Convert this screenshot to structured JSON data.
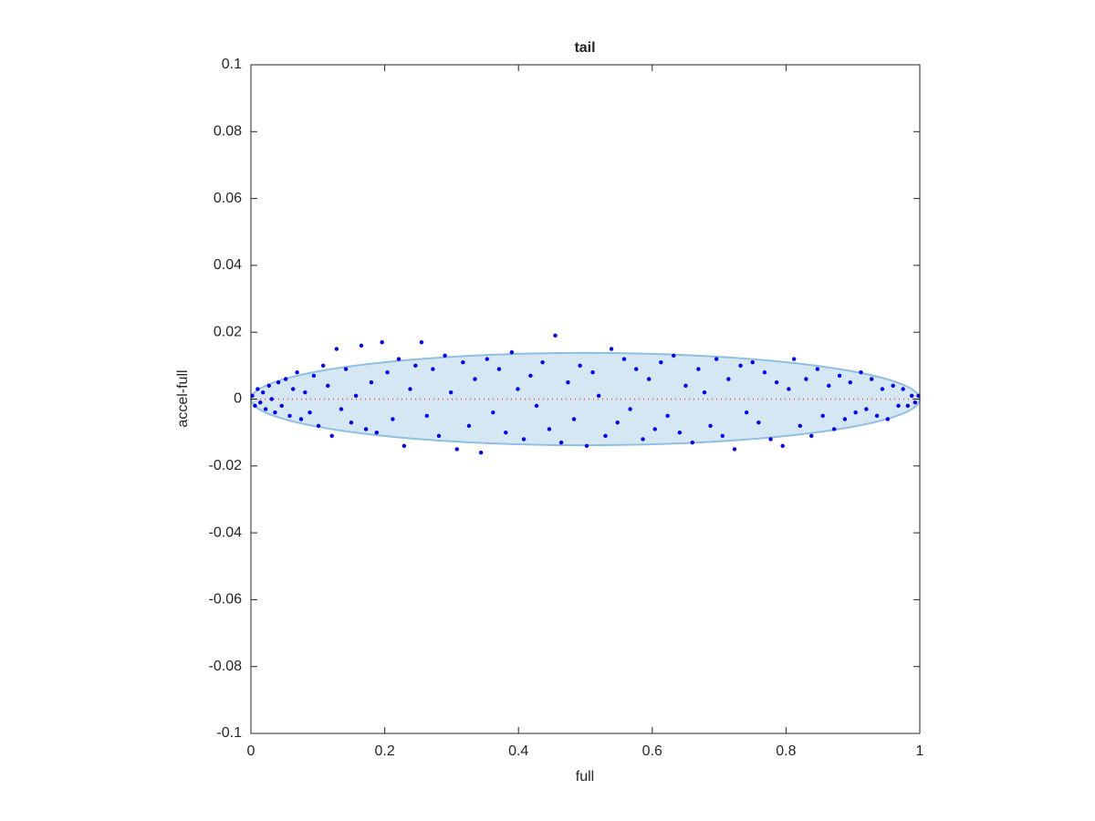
{
  "chart_data": {
    "type": "scatter",
    "title": "tail",
    "x_label": "full",
    "y_label": "accel-full",
    "xlim": [
      0,
      1
    ],
    "ylim": [
      -0.1,
      0.1
    ],
    "xticks": [
      0,
      0.2,
      0.4,
      0.6,
      0.8,
      1
    ],
    "yticks": [
      -0.1,
      -0.08,
      -0.06,
      -0.04,
      -0.02,
      0,
      0.02,
      0.04,
      0.06,
      0.08,
      0.1
    ],
    "ellipse": {
      "cx": 0.5,
      "cy": 0,
      "rx": 0.5,
      "ry": 0.0138,
      "color": "#d6e7f4",
      "edge": "#8fbfe2"
    },
    "reference_line": {
      "x": [
        0,
        1
      ],
      "y": [
        0,
        0
      ],
      "color": "#ff3b3b"
    },
    "series": [
      {
        "color": "#0000ff",
        "x": [
          0.002,
          0.006,
          0.01,
          0.014,
          0.018,
          0.022,
          0.027,
          0.031,
          0.036,
          0.041,
          0.046,
          0.052,
          0.058,
          0.063,
          0.069,
          0.075,
          0.081,
          0.088,
          0.094,
          0.101,
          0.108,
          0.115,
          0.121,
          0.128,
          0.135,
          0.142,
          0.15,
          0.157,
          0.165,
          0.172,
          0.18,
          0.188,
          0.196,
          0.204,
          0.212,
          0.221,
          0.229,
          0.238,
          0.246,
          0.255,
          0.263,
          0.272,
          0.281,
          0.29,
          0.299,
          0.308,
          0.317,
          0.326,
          0.335,
          0.344,
          0.353,
          0.362,
          0.371,
          0.381,
          0.39,
          0.399,
          0.408,
          0.418,
          0.427,
          0.436,
          0.446,
          0.455,
          0.464,
          0.474,
          0.483,
          0.492,
          0.502,
          0.511,
          0.52,
          0.53,
          0.539,
          0.548,
          0.558,
          0.567,
          0.576,
          0.586,
          0.595,
          0.604,
          0.613,
          0.623,
          0.632,
          0.641,
          0.65,
          0.66,
          0.669,
          0.678,
          0.687,
          0.696,
          0.705,
          0.714,
          0.723,
          0.732,
          0.741,
          0.75,
          0.759,
          0.768,
          0.777,
          0.786,
          0.795,
          0.804,
          0.812,
          0.821,
          0.83,
          0.838,
          0.847,
          0.855,
          0.864,
          0.872,
          0.88,
          0.888,
          0.896,
          0.904,
          0.912,
          0.92,
          0.928,
          0.936,
          0.944,
          0.952,
          0.96,
          0.968,
          0.975,
          0.982,
          0.988,
          0.993,
          0.998
        ],
        "values": [
          0.001,
          -0.002,
          0.003,
          -0.001,
          0.002,
          -0.003,
          0.004,
          0.0,
          -0.004,
          0.005,
          -0.002,
          0.006,
          -0.005,
          0.003,
          0.008,
          -0.006,
          0.002,
          -0.004,
          0.007,
          -0.008,
          0.01,
          0.004,
          -0.011,
          0.015,
          -0.003,
          0.009,
          -0.007,
          0.001,
          0.016,
          -0.009,
          0.005,
          -0.01,
          0.017,
          0.008,
          -0.006,
          0.012,
          -0.014,
          0.003,
          0.01,
          0.017,
          -0.005,
          0.009,
          -0.011,
          0.013,
          0.002,
          -0.015,
          0.011,
          -0.008,
          0.006,
          -0.016,
          0.012,
          -0.004,
          0.009,
          -0.01,
          0.014,
          0.003,
          -0.012,
          0.007,
          -0.002,
          0.011,
          -0.009,
          0.019,
          -0.013,
          0.005,
          -0.006,
          0.01,
          -0.014,
          0.008,
          0.001,
          -0.011,
          0.015,
          -0.007,
          0.012,
          -0.003,
          0.009,
          -0.012,
          0.006,
          -0.009,
          0.011,
          -0.005,
          0.013,
          -0.01,
          0.004,
          -0.013,
          0.009,
          0.002,
          -0.008,
          0.012,
          -0.011,
          0.006,
          -0.015,
          0.01,
          -0.004,
          0.011,
          -0.007,
          0.008,
          -0.012,
          0.005,
          -0.014,
          0.003,
          0.012,
          -0.008,
          0.006,
          -0.011,
          0.009,
          -0.005,
          0.004,
          -0.009,
          0.007,
          -0.006,
          0.005,
          -0.004,
          0.008,
          -0.003,
          0.006,
          -0.005,
          0.003,
          -0.006,
          0.004,
          -0.002,
          0.003,
          -0.002,
          0.001,
          -0.001,
          0.001
        ]
      }
    ]
  }
}
